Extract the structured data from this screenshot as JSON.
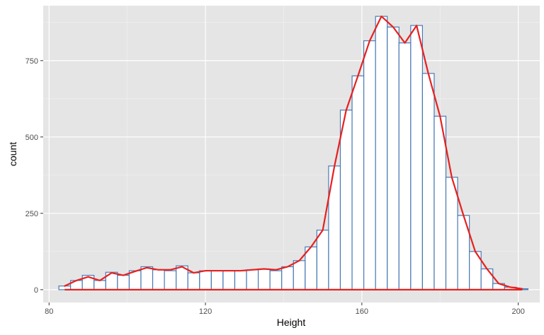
{
  "chart_data": {
    "type": "bar",
    "xlabel": "Height",
    "ylabel": "count",
    "xlim": [
      78.5,
      205.5
    ],
    "ylim": [
      -42,
      930
    ],
    "x_ticks": [
      80,
      120,
      160,
      200
    ],
    "x_minor_ticks": [
      100,
      140,
      180
    ],
    "y_ticks": [
      0,
      250,
      500,
      750
    ],
    "y_minor_ticks": [
      125,
      375,
      625,
      875
    ],
    "grid": true,
    "bin_width": 3,
    "bins": [
      {
        "x": 84,
        "count": 12
      },
      {
        "x": 87,
        "count": 30
      },
      {
        "x": 90,
        "count": 47
      },
      {
        "x": 93,
        "count": 30
      },
      {
        "x": 96,
        "count": 57
      },
      {
        "x": 99,
        "count": 47
      },
      {
        "x": 102,
        "count": 62
      },
      {
        "x": 105,
        "count": 75
      },
      {
        "x": 108,
        "count": 65
      },
      {
        "x": 111,
        "count": 62
      },
      {
        "x": 114,
        "count": 78
      },
      {
        "x": 117,
        "count": 55
      },
      {
        "x": 120,
        "count": 62
      },
      {
        "x": 123,
        "count": 62
      },
      {
        "x": 126,
        "count": 62
      },
      {
        "x": 129,
        "count": 62
      },
      {
        "x": 132,
        "count": 65
      },
      {
        "x": 135,
        "count": 68
      },
      {
        "x": 138,
        "count": 62
      },
      {
        "x": 141,
        "count": 75
      },
      {
        "x": 144,
        "count": 95
      },
      {
        "x": 147,
        "count": 140
      },
      {
        "x": 150,
        "count": 195
      },
      {
        "x": 153,
        "count": 405
      },
      {
        "x": 156,
        "count": 588
      },
      {
        "x": 159,
        "count": 700
      },
      {
        "x": 162,
        "count": 815
      },
      {
        "x": 165,
        "count": 895
      },
      {
        "x": 168,
        "count": 860
      },
      {
        "x": 171,
        "count": 808
      },
      {
        "x": 174,
        "count": 865
      },
      {
        "x": 177,
        "count": 708
      },
      {
        "x": 180,
        "count": 568
      },
      {
        "x": 183,
        "count": 368
      },
      {
        "x": 186,
        "count": 243
      },
      {
        "x": 189,
        "count": 125
      },
      {
        "x": 192,
        "count": 68
      },
      {
        "x": 195,
        "count": 20
      },
      {
        "x": 198,
        "count": 8
      },
      {
        "x": 201,
        "count": 3
      }
    ],
    "line": {
      "points": [
        [
          84,
          12
        ],
        [
          87,
          30
        ],
        [
          90,
          42
        ],
        [
          93,
          30
        ],
        [
          96,
          55
        ],
        [
          99,
          47
        ],
        [
          102,
          60
        ],
        [
          105,
          72
        ],
        [
          108,
          65
        ],
        [
          111,
          65
        ],
        [
          114,
          75
        ],
        [
          117,
          55
        ],
        [
          120,
          62
        ],
        [
          123,
          62
        ],
        [
          126,
          62
        ],
        [
          129,
          62
        ],
        [
          132,
          65
        ],
        [
          135,
          68
        ],
        [
          138,
          65
        ],
        [
          141,
          75
        ],
        [
          144,
          95
        ],
        [
          147,
          140
        ],
        [
          150,
          195
        ],
        [
          153,
          405
        ],
        [
          156,
          588
        ],
        [
          159,
          700
        ],
        [
          162,
          815
        ],
        [
          165,
          895
        ],
        [
          168,
          860
        ],
        [
          171,
          808
        ],
        [
          174,
          865
        ],
        [
          177,
          708
        ],
        [
          180,
          568
        ],
        [
          183,
          368
        ],
        [
          186,
          243
        ],
        [
          189,
          125
        ],
        [
          192,
          68
        ],
        [
          195,
          20
        ],
        [
          198,
          8
        ],
        [
          201,
          3
        ]
      ],
      "baseline_segment": [
        [
          84,
          0
        ],
        [
          201,
          0
        ]
      ]
    },
    "colors": {
      "panel": "#e5e5e5",
      "grid_major": "#ffffff",
      "grid_minor": "#f2f2f2",
      "bar_fill": "#ffffff",
      "bar_outline": "#4a7ab5",
      "line": "#e8201e",
      "tick": "#333333"
    },
    "bar_outline_width": 1.2,
    "line_width": 2.2
  }
}
